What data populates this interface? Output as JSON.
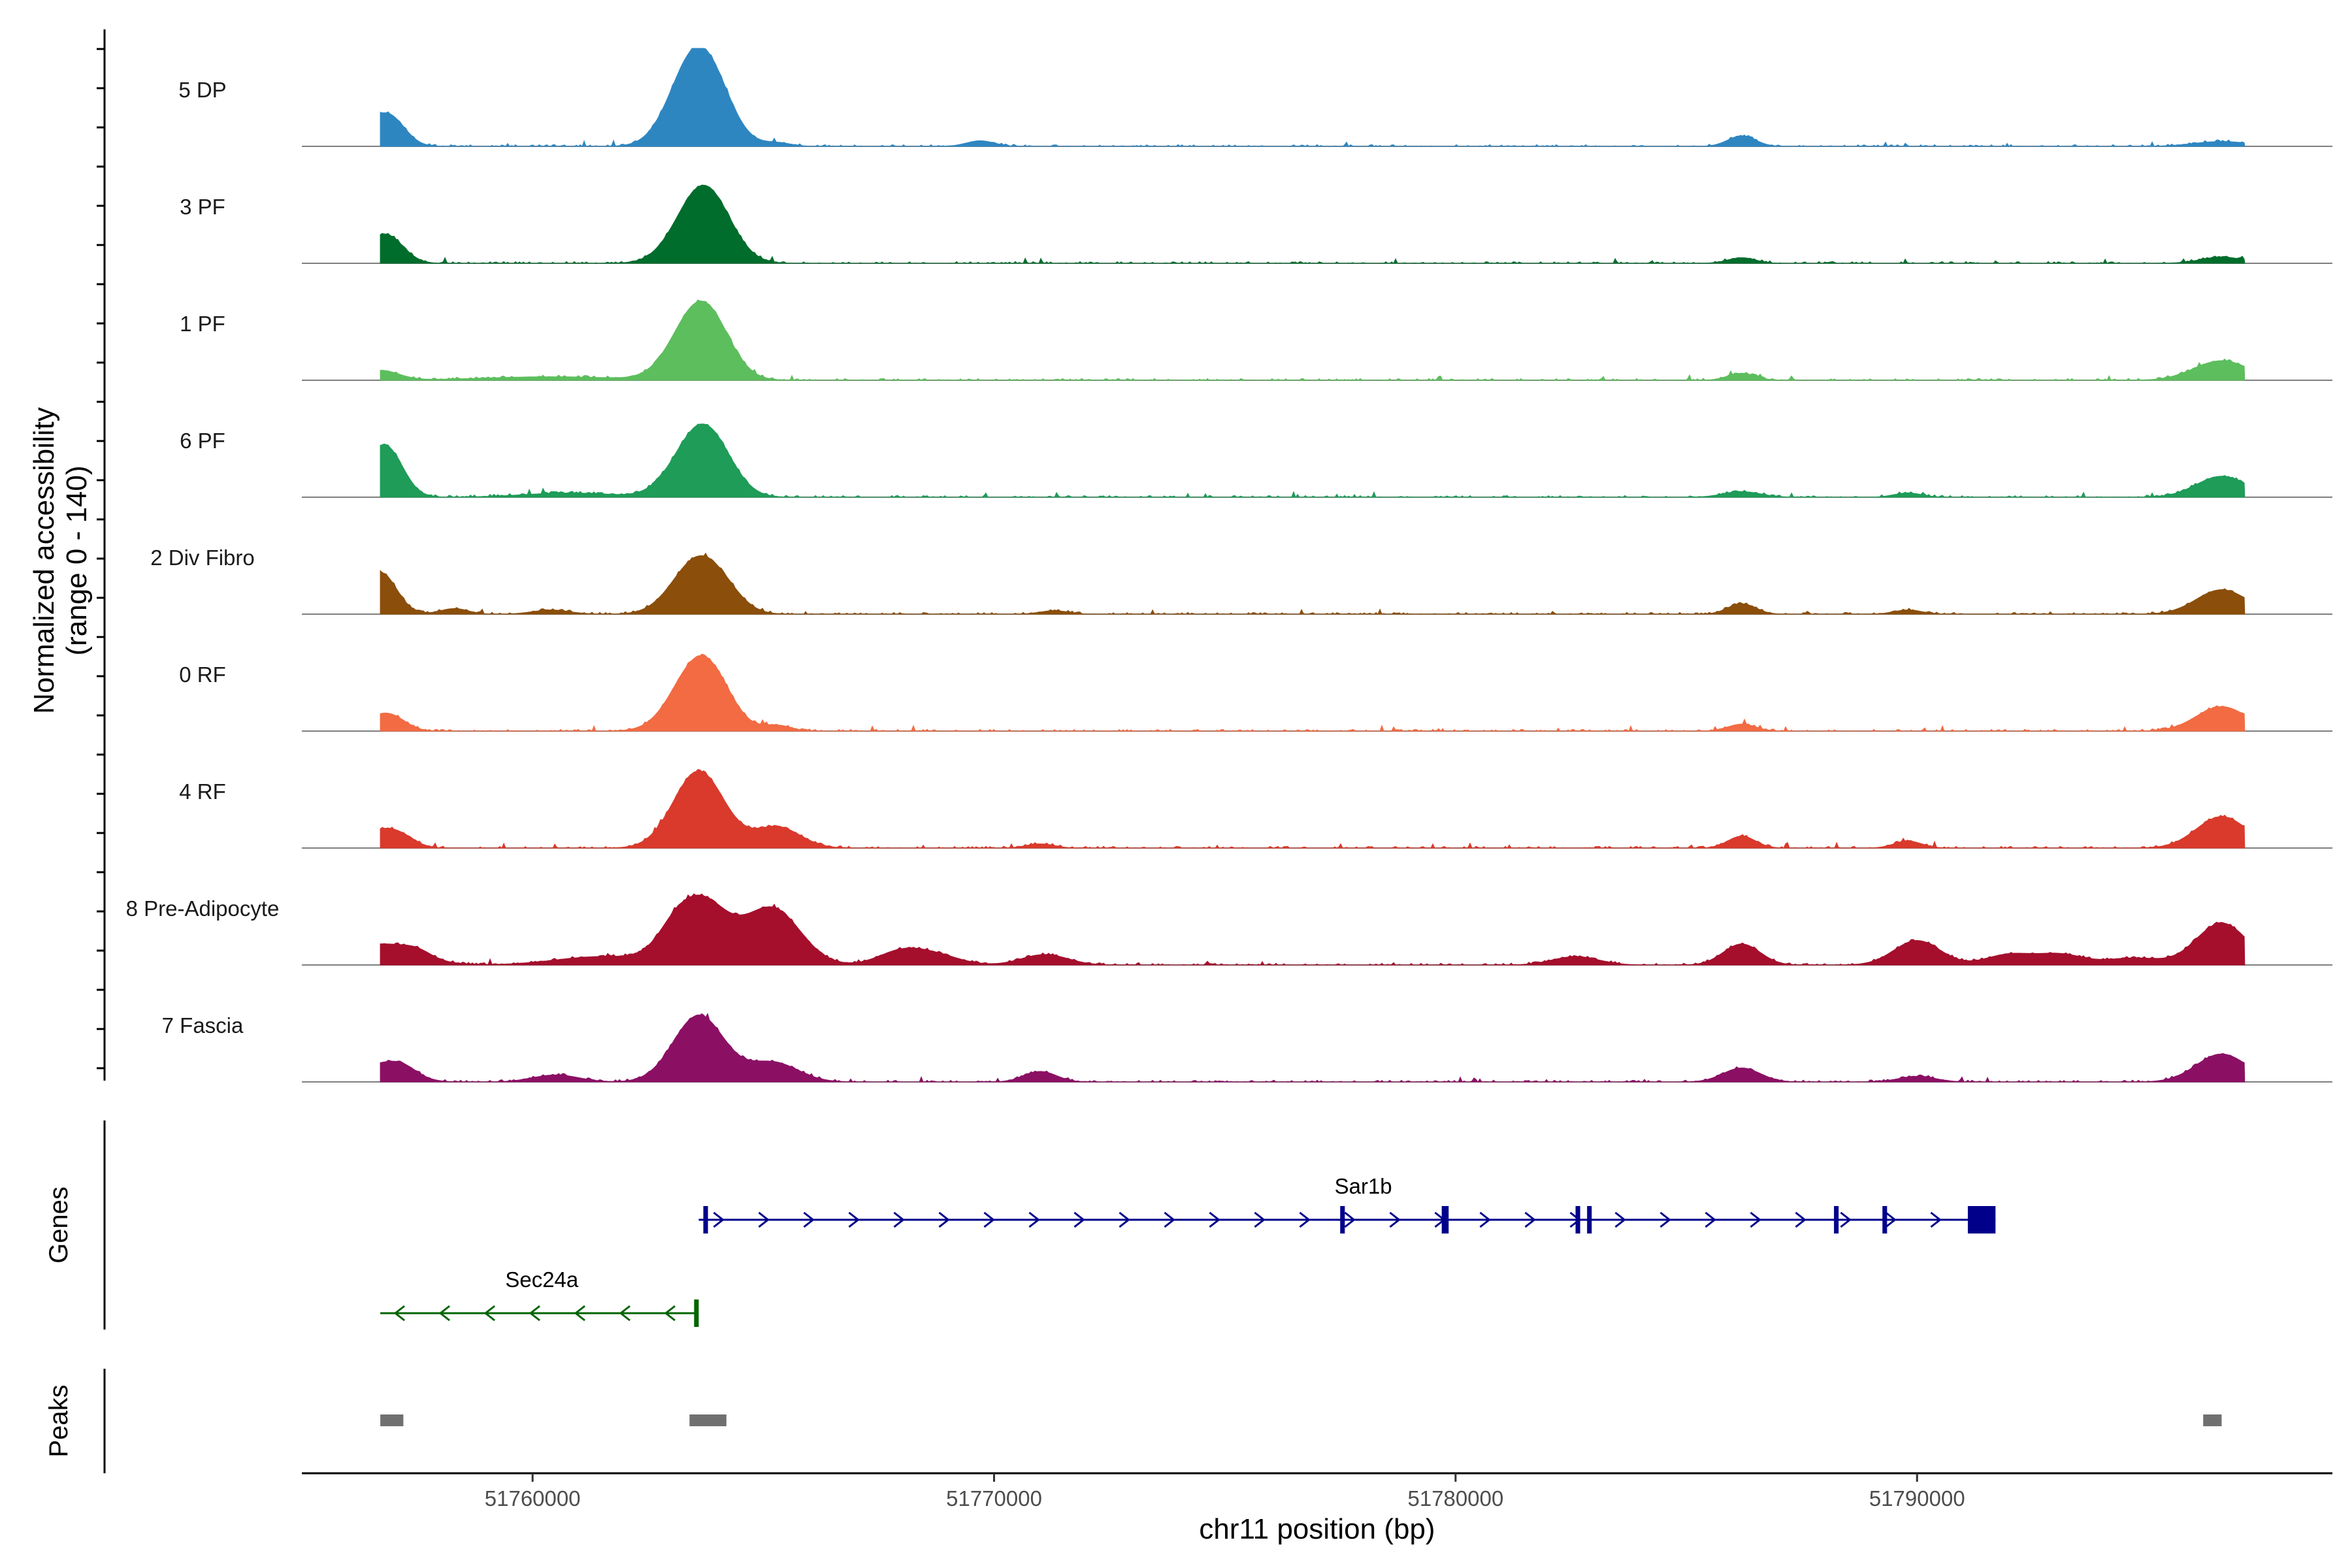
{
  "chart_data": {
    "type": "coverage",
    "chromosome": "chr11",
    "xlabel": "chr11 position (bp)",
    "xlim": [
      51755000,
      51799000
    ],
    "x_ticks": [
      51760000,
      51770000,
      51780000,
      51790000
    ],
    "x_tick_labels": [
      "51760000",
      "51770000",
      "51780000",
      "51790000"
    ],
    "ylabel": "Normalized accessibility",
    "ylabel_range": "(range 0 - 140)",
    "ylim": [
      0,
      140
    ],
    "panel_labels": {
      "genes": "Genes",
      "peaks": "Peaks"
    },
    "tracks": [
      {
        "name": "5 DP",
        "color": "#2E86C1",
        "peaks": [
          [
            51756700,
            38,
            80
          ],
          [
            51757000,
            14,
            60
          ],
          [
            51763600,
            125,
            110
          ],
          [
            51763300,
            14,
            90
          ],
          [
            51764000,
            12,
            80
          ],
          [
            51765300,
            5,
            60
          ],
          [
            51769700,
            8,
            60
          ],
          [
            51786200,
            15,
            60
          ],
          [
            51796600,
            7,
            120
          ]
        ]
      },
      {
        "name": "3 PF",
        "color": "#006D2C",
        "peaks": [
          [
            51756700,
            35,
            80
          ],
          [
            51757000,
            10,
            60
          ],
          [
            51763650,
            100,
            110
          ],
          [
            51764000,
            15,
            90
          ],
          [
            51786200,
            8,
            60
          ],
          [
            51796600,
            9,
            90
          ]
        ]
      },
      {
        "name": "1 PF",
        "color": "#5DBE5D",
        "peaks": [
          [
            51756700,
            14,
            80
          ],
          [
            51760400,
            5,
            300
          ],
          [
            51763600,
            105,
            110
          ],
          [
            51764000,
            12,
            80
          ],
          [
            51786200,
            10,
            60
          ],
          [
            51796600,
            28,
            120
          ]
        ]
      },
      {
        "name": "6 PF",
        "color": "#1E9C58",
        "peaks": [
          [
            51756700,
            65,
            80
          ],
          [
            51757000,
            15,
            60
          ],
          [
            51763600,
            90,
            110
          ],
          [
            51764000,
            20,
            90
          ],
          [
            51760800,
            6,
            200
          ],
          [
            51786200,
            8,
            80
          ],
          [
            51789800,
            6,
            60
          ],
          [
            51796600,
            30,
            110
          ]
        ]
      },
      {
        "name": "2 Div Fibro",
        "color": "#8B4E0B",
        "peaks": [
          [
            51756700,
            60,
            70
          ],
          [
            51758300,
            8,
            60
          ],
          [
            51760400,
            6,
            80
          ],
          [
            51763600,
            80,
            110
          ],
          [
            51764200,
            10,
            80
          ],
          [
            51771300,
            5,
            60
          ],
          [
            51786200,
            15,
            60
          ],
          [
            51789800,
            6,
            60
          ],
          [
            51796600,
            35,
            110
          ]
        ]
      },
      {
        "name": "0 RF",
        "color": "#F26B43",
        "peaks": [
          [
            51756700,
            20,
            80
          ],
          [
            51757000,
            8,
            60
          ],
          [
            51763600,
            100,
            110
          ],
          [
            51764000,
            12,
            80
          ],
          [
            51765300,
            8,
            60
          ],
          [
            51786200,
            10,
            60
          ],
          [
            51796600,
            35,
            110
          ]
        ]
      },
      {
        "name": "4 RF",
        "color": "#D93A2C",
        "peaks": [
          [
            51756700,
            25,
            80
          ],
          [
            51757200,
            10,
            60
          ],
          [
            51763600,
            110,
            110
          ],
          [
            51765300,
            30,
            100
          ],
          [
            51771000,
            6,
            60
          ],
          [
            51786200,
            17,
            60
          ],
          [
            51789800,
            10,
            60
          ],
          [
            51796600,
            45,
            110
          ]
        ]
      },
      {
        "name": "8 Pre-Adipocyte",
        "color": "#A50F2C",
        "peaks": [
          [
            51756700,
            30,
            150
          ],
          [
            51757500,
            8,
            60
          ],
          [
            51761500,
            12,
            200
          ],
          [
            51763000,
            10,
            60
          ],
          [
            51763600,
            95,
            120
          ],
          [
            51765200,
            80,
            120
          ],
          [
            51768000,
            20,
            100
          ],
          [
            51768800,
            12,
            100
          ],
          [
            51771100,
            15,
            100
          ],
          [
            51782600,
            12,
            100
          ],
          [
            51786200,
            30,
            80
          ],
          [
            51790000,
            35,
            100
          ],
          [
            51792000,
            15,
            100
          ],
          [
            51793100,
            15,
            100
          ],
          [
            51794700,
            10,
            120
          ],
          [
            51796600,
            60,
            110
          ]
        ]
      },
      {
        "name": "7 Fascia",
        "color": "#8B1064",
        "peaks": [
          [
            51756700,
            25,
            110
          ],
          [
            51757200,
            10,
            60
          ],
          [
            51760500,
            10,
            100
          ],
          [
            51763600,
            95,
            110
          ],
          [
            51765200,
            28,
            110
          ],
          [
            51771000,
            15,
            70
          ],
          [
            51786200,
            20,
            80
          ],
          [
            51790000,
            8,
            80
          ],
          [
            51796600,
            40,
            110
          ]
        ]
      }
    ],
    "genes": [
      {
        "name": "Sar1b",
        "color": "#00008B",
        "strand": "+",
        "start": 51763600,
        "end": 51791700,
        "label_x": 51778000,
        "exons": [
          [
            51763700,
            51763800
          ],
          [
            51777500,
            51777600
          ],
          [
            51779700,
            51779850
          ],
          [
            51782600,
            51782700
          ],
          [
            51782850,
            51782950
          ],
          [
            51788200,
            51788300
          ],
          [
            51789250,
            51789350
          ],
          [
            51791100,
            51791700
          ]
        ]
      },
      {
        "name": "Sec24a",
        "color": "#006400",
        "strand": "-",
        "start": 51756700,
        "end": 51763600,
        "label_x": 51760200,
        "exons": [
          [
            51763500,
            51763600
          ]
        ]
      }
    ],
    "peak_regions": [
      [
        51756700,
        51757200
      ],
      [
        51763400,
        51764200
      ],
      [
        51796200,
        51796600
      ]
    ]
  }
}
